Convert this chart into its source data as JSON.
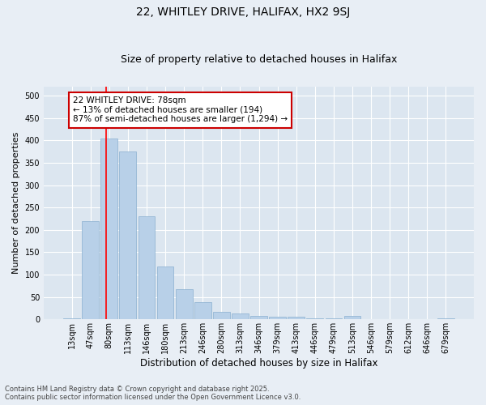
{
  "title1": "22, WHITLEY DRIVE, HALIFAX, HX2 9SJ",
  "title2": "Size of property relative to detached houses in Halifax",
  "xlabel": "Distribution of detached houses by size in Halifax",
  "ylabel": "Number of detached properties",
  "categories": [
    "13sqm",
    "47sqm",
    "80sqm",
    "113sqm",
    "146sqm",
    "180sqm",
    "213sqm",
    "246sqm",
    "280sqm",
    "313sqm",
    "346sqm",
    "379sqm",
    "413sqm",
    "446sqm",
    "479sqm",
    "513sqm",
    "546sqm",
    "579sqm",
    "612sqm",
    "646sqm",
    "679sqm"
  ],
  "values": [
    2,
    220,
    405,
    375,
    230,
    118,
    68,
    38,
    17,
    13,
    8,
    6,
    6,
    2,
    2,
    7,
    1,
    1,
    0,
    1,
    2
  ],
  "bar_color": "#b8d0e8",
  "bar_edge_color": "#8ab0d0",
  "property_line_x": 1.82,
  "property_line_label": "22 WHITLEY DRIVE: 78sqm",
  "annotation_line1": "← 13% of detached houses are smaller (194)",
  "annotation_line2": "87% of semi-detached houses are larger (1,294) →",
  "annotation_box_color": "#cc0000",
  "annotation_fill": "#ffffff",
  "footnote1": "Contains HM Land Registry data © Crown copyright and database right 2025.",
  "footnote2": "Contains public sector information licensed under the Open Government Licence v3.0.",
  "bg_color": "#e8eef5",
  "plot_bg_color": "#dce6f0",
  "ylim": [
    0,
    520
  ],
  "yticks": [
    0,
    50,
    100,
    150,
    200,
    250,
    300,
    350,
    400,
    450,
    500
  ],
  "grid_color": "#ffffff",
  "title_fontsize": 10,
  "subtitle_fontsize": 9,
  "ylabel_fontsize": 8,
  "xlabel_fontsize": 8.5,
  "tick_fontsize": 7,
  "annot_fontsize": 7.5,
  "footnote_fontsize": 6
}
